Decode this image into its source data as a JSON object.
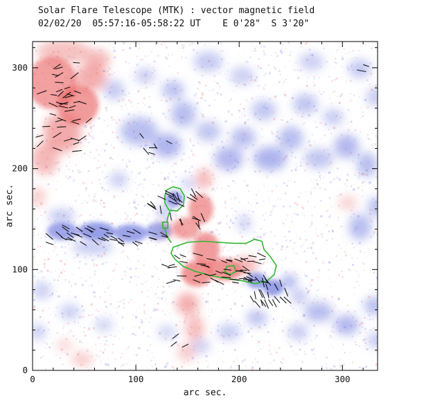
{
  "chart_data": {
    "type": "heatmap",
    "title": "Solar Flare Telescope (MTK) : vector magnetic field",
    "subtitle": "02/02/20  05:57:16-05:58:22 UT    E 0'28\"  S 3'20\"",
    "xlabel": "arc sec.",
    "ylabel": "arc sec.",
    "xlim": [
      0,
      334
    ],
    "ylim": [
      0,
      326
    ],
    "xticks": [
      0,
      100,
      200,
      300
    ],
    "yticks": [
      0,
      100,
      200,
      300
    ],
    "minor_tick_step": 20,
    "colors": {
      "positive": "#ea6a6a",
      "negative": "#6b76dd",
      "contour": "#2eb82e",
      "vector": "#000000",
      "axis": "#000000",
      "background": "#ffffff"
    },
    "blob_fields": [
      "x",
      "y",
      "rx",
      "ry",
      "polarity",
      "intensity"
    ],
    "blobs": [
      [
        19,
        285,
        24,
        26,
        "pos",
        0.75
      ],
      [
        44,
        263,
        20,
        20,
        "pos",
        0.8
      ],
      [
        29,
        236,
        18,
        20,
        "pos",
        0.65
      ],
      [
        12,
        210,
        13,
        16,
        "pos",
        0.5
      ],
      [
        56,
        290,
        16,
        13,
        "pos",
        0.6
      ],
      [
        30,
        316,
        26,
        12,
        "pos",
        0.4
      ],
      [
        63,
        308,
        12,
        10,
        "pos",
        0.5
      ],
      [
        5,
        172,
        8,
        10,
        "pos",
        0.25
      ],
      [
        166,
        190,
        8,
        10,
        "pos",
        0.5
      ],
      [
        163,
        160,
        12,
        15,
        "pos",
        0.75
      ],
      [
        149,
        141,
        13,
        11,
        "pos",
        0.7
      ],
      [
        131,
        139,
        9,
        7,
        "pos",
        0.5
      ],
      [
        168,
        120,
        13,
        17,
        "pos",
        0.8
      ],
      [
        159,
        96,
        15,
        13,
        "pos",
        0.85
      ],
      [
        186,
        100,
        17,
        11,
        "pos",
        0.85
      ],
      [
        206,
        104,
        11,
        8,
        "pos",
        0.6
      ],
      [
        150,
        66,
        11,
        11,
        "pos",
        0.6
      ],
      [
        157,
        42,
        9,
        13,
        "pos",
        0.45
      ],
      [
        149,
        18,
        9,
        9,
        "pos",
        0.3
      ],
      [
        48,
        11,
        10,
        7,
        "pos",
        0.3
      ],
      [
        31,
        25,
        8,
        6,
        "pos",
        0.2
      ],
      [
        305,
        166,
        9,
        7,
        "pos",
        0.25
      ],
      [
        29,
        138,
        15,
        9,
        "neg",
        0.75
      ],
      [
        62,
        138,
        18,
        9,
        "neg",
        0.85
      ],
      [
        95,
        136,
        16,
        9,
        "neg",
        0.8
      ],
      [
        122,
        138,
        12,
        9,
        "neg",
        0.7
      ],
      [
        58,
        122,
        20,
        7,
        "neg",
        0.35
      ],
      [
        28,
        153,
        13,
        7,
        "neg",
        0.35
      ],
      [
        137,
        170,
        9,
        8,
        "neg",
        0.8
      ],
      [
        127,
        157,
        7,
        6,
        "neg",
        0.5
      ],
      [
        103,
        237,
        18,
        14,
        "neg",
        0.5
      ],
      [
        130,
        223,
        14,
        12,
        "neg",
        0.6
      ],
      [
        146,
        254,
        12,
        13,
        "neg",
        0.5
      ],
      [
        170,
        237,
        12,
        10,
        "neg",
        0.4
      ],
      [
        190,
        210,
        14,
        12,
        "neg",
        0.55
      ],
      [
        204,
        231,
        12,
        10,
        "neg",
        0.5
      ],
      [
        230,
        210,
        16,
        12,
        "neg",
        0.6
      ],
      [
        250,
        230,
        12,
        12,
        "neg",
        0.5
      ],
      [
        277,
        210,
        14,
        10,
        "neg",
        0.4
      ],
      [
        304,
        222,
        12,
        12,
        "neg",
        0.55
      ],
      [
        324,
        204,
        10,
        12,
        "neg",
        0.5
      ],
      [
        224,
        258,
        12,
        10,
        "neg",
        0.4
      ],
      [
        264,
        264,
        12,
        10,
        "neg",
        0.4
      ],
      [
        291,
        251,
        10,
        8,
        "neg",
        0.35
      ],
      [
        170,
        306,
        14,
        10,
        "neg",
        0.35
      ],
      [
        203,
        292,
        12,
        9,
        "neg",
        0.3
      ],
      [
        136,
        278,
        11,
        9,
        "neg",
        0.45
      ],
      [
        109,
        292,
        10,
        8,
        "neg",
        0.3
      ],
      [
        270,
        306,
        12,
        9,
        "neg",
        0.3
      ],
      [
        317,
        299,
        11,
        9,
        "neg",
        0.4
      ],
      [
        332,
        271,
        9,
        9,
        "neg",
        0.35
      ],
      [
        83,
        189,
        9,
        8,
        "neg",
        0.3
      ],
      [
        79,
        278,
        10,
        10,
        "neg",
        0.35
      ],
      [
        317,
        142,
        11,
        13,
        "neg",
        0.5
      ],
      [
        333,
        162,
        9,
        10,
        "neg",
        0.45
      ],
      [
        217,
        89,
        10,
        8,
        "neg",
        0.8
      ],
      [
        233,
        82,
        10,
        8,
        "neg",
        0.85
      ],
      [
        248,
        88,
        8,
        7,
        "neg",
        0.6
      ],
      [
        258,
        73,
        8,
        7,
        "neg",
        0.4
      ],
      [
        277,
        58,
        14,
        10,
        "neg",
        0.5
      ],
      [
        304,
        45,
        12,
        10,
        "neg",
        0.55
      ],
      [
        331,
        64,
        10,
        9,
        "neg",
        0.5
      ],
      [
        333,
        30,
        9,
        8,
        "neg",
        0.35
      ],
      [
        257,
        38,
        10,
        8,
        "neg",
        0.35
      ],
      [
        190,
        38,
        11,
        8,
        "neg",
        0.35
      ],
      [
        163,
        24,
        9,
        7,
        "neg",
        0.3
      ],
      [
        217,
        52,
        10,
        8,
        "neg",
        0.45
      ],
      [
        130,
        38,
        9,
        7,
        "neg",
        0.25
      ],
      [
        9,
        79,
        9,
        9,
        "neg",
        0.3
      ],
      [
        36,
        58,
        10,
        8,
        "neg",
        0.3
      ],
      [
        69,
        45,
        9,
        7,
        "neg",
        0.25
      ],
      [
        5,
        38,
        8,
        8,
        "neg",
        0.3
      ],
      [
        205,
        146,
        7,
        9,
        "neg",
        0.25
      ],
      [
        151,
        185,
        7,
        6,
        "neg",
        0.3
      ]
    ],
    "contours": [
      {
        "closed": true,
        "pts": [
          [
            130,
            179
          ],
          [
            136,
            182
          ],
          [
            143,
            180
          ],
          [
            147,
            173
          ],
          [
            146,
            164
          ],
          [
            140,
            158
          ],
          [
            132,
            159
          ],
          [
            128,
            166
          ],
          [
            128,
            173
          ]
        ]
      },
      {
        "closed": false,
        "pts": [
          [
            133,
            158
          ],
          [
            131,
            152
          ],
          [
            130,
            147
          ]
        ]
      },
      {
        "closed": true,
        "pts": [
          [
            126,
            147
          ],
          [
            131,
            147
          ],
          [
            131,
            141
          ],
          [
            126,
            141
          ]
        ]
      },
      {
        "closed": false,
        "pts": [
          [
            128,
            141
          ],
          [
            130,
            133
          ],
          [
            134,
            127
          ]
        ]
      },
      {
        "closed": true,
        "pts": [
          [
            136,
            122
          ],
          [
            150,
            127
          ],
          [
            165,
            128
          ],
          [
            180,
            127
          ],
          [
            195,
            126
          ],
          [
            207,
            126
          ],
          [
            215,
            130
          ],
          [
            222,
            128
          ],
          [
            224,
            120
          ],
          [
            230,
            113
          ],
          [
            236,
            104
          ],
          [
            234,
            95
          ],
          [
            226,
            88
          ],
          [
            215,
            86
          ],
          [
            202,
            89
          ],
          [
            188,
            91
          ],
          [
            172,
            94
          ],
          [
            158,
            98
          ],
          [
            146,
            103
          ],
          [
            138,
            110
          ],
          [
            134,
            116
          ]
        ]
      },
      {
        "closed": true,
        "pts": [
          [
            188,
            103
          ],
          [
            195,
            104
          ],
          [
            197,
            98
          ],
          [
            191,
            95
          ],
          [
            186,
            98
          ]
        ]
      }
    ],
    "vector_cluster_fields": [
      "cx",
      "cy",
      "w",
      "h",
      "count",
      "angle_deg",
      "jitter_deg",
      "length",
      "seed"
    ],
    "vector_clusters": [
      [
        30,
        262,
        52,
        90,
        42,
        10,
        35,
        8,
        11
      ],
      [
        72,
        134,
        112,
        18,
        38,
        -25,
        18,
        8,
        22
      ],
      [
        140,
        160,
        55,
        35,
        26,
        -50,
        35,
        8,
        33
      ],
      [
        175,
        100,
        100,
        30,
        50,
        -10,
        28,
        8,
        44
      ],
      [
        230,
        78,
        40,
        26,
        22,
        -60,
        22,
        8,
        55
      ],
      [
        322,
        300,
        10,
        6,
        2,
        0,
        20,
        8,
        66
      ],
      [
        150,
        30,
        30,
        12,
        3,
        15,
        30,
        7,
        77
      ],
      [
        120,
        222,
        36,
        22,
        6,
        -20,
        40,
        7,
        88
      ]
    ],
    "noise": {
      "count": 2600,
      "seed": 7,
      "pos_color": "235,120,120",
      "neg_color": "120,130,230"
    }
  }
}
